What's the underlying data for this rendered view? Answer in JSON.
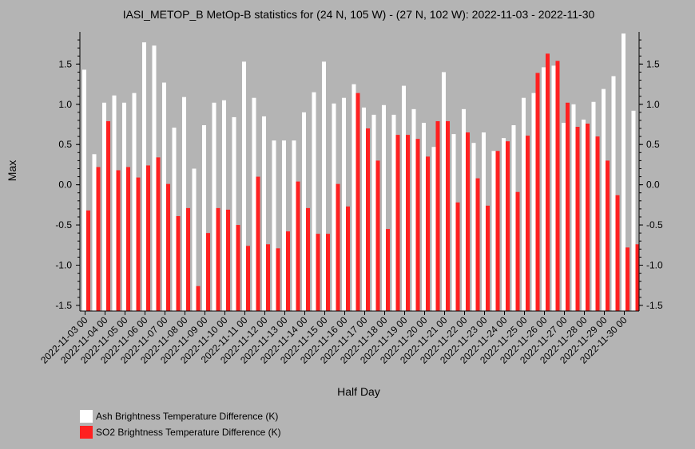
{
  "chart_data": {
    "type": "bar",
    "title": "IASI_METOP_B MetOp-B statistics for (24 N, 105 W) - (27 N, 102 W): 2022-11-03 - 2022-11-30",
    "xlabel": "Half Day",
    "ylabel": "Max",
    "ylim": [
      -1.57,
      1.9
    ],
    "yticks": [
      "-1.5",
      "-1.0",
      "-0.5",
      "0.0",
      "0.5",
      "1.0",
      "1.5"
    ],
    "ytick_values": [
      -1.5,
      -1.0,
      -0.5,
      0.0,
      0.5,
      1.0,
      1.5
    ],
    "tick_labels": [
      "2022-11-03 00",
      "2022-11-04 00",
      "2022-11-05 00",
      "2022-11-06 00",
      "2022-11-07 00",
      "2022-11-08 00",
      "2022-11-09 00",
      "2022-11-10 00",
      "2022-11-11 00",
      "2022-11-12 00",
      "2022-11-13 00",
      "2022-11-14 00",
      "2022-11-15 00",
      "2022-11-16 00",
      "2022-11-17 00",
      "2022-11-18 00",
      "2022-11-19 00",
      "2022-11-20 00",
      "2022-11-21 00",
      "2022-11-22 00",
      "2022-11-23 00",
      "2022-11-24 00",
      "2022-11-25 00",
      "2022-11-26 00",
      "2022-11-27 00",
      "2022-11-28 00",
      "2022-11-29 00",
      "2022-11-30 00"
    ],
    "grid": false,
    "legend_position": "bottom-left",
    "series": [
      {
        "name": "Ash Brightness Temperature Difference (K)",
        "color": "#ffffff",
        "values": [
          1.43,
          0.38,
          1.02,
          1.11,
          1.02,
          1.14,
          1.77,
          1.73,
          1.27,
          0.71,
          1.09,
          0.2,
          0.74,
          1.02,
          1.05,
          0.84,
          1.53,
          1.08,
          0.85,
          0.55,
          0.55,
          0.55,
          0.9,
          1.15,
          1.53,
          1.01,
          1.08,
          1.25,
          0.96,
          0.87,
          0.99,
          0.87,
          1.23,
          0.94,
          0.77,
          0.47,
          1.4,
          0.63,
          0.94,
          0.52,
          0.65,
          0.42,
          0.58,
          0.74,
          1.08,
          1.14,
          1.46,
          1.48,
          0.77,
          1.0,
          0.81,
          1.03,
          1.19,
          1.35,
          1.88,
          0.92
        ]
      },
      {
        "name": "SO2 Brightness Temperature Difference (K)",
        "color": "#ff2020",
        "values": [
          -0.32,
          0.22,
          0.79,
          0.18,
          0.22,
          0.09,
          0.24,
          0.34,
          0.01,
          -0.39,
          -0.29,
          -1.26,
          -0.6,
          -0.29,
          -0.31,
          -0.5,
          -0.76,
          0.1,
          -0.74,
          -0.79,
          -0.58,
          0.04,
          -0.29,
          -0.61,
          -0.61,
          0.01,
          -0.27,
          1.14,
          0.7,
          0.3,
          -0.55,
          0.62,
          0.62,
          0.57,
          0.35,
          0.79,
          0.79,
          -0.22,
          0.65,
          0.08,
          -0.26,
          0.42,
          0.54,
          -0.09,
          0.61,
          1.39,
          1.63,
          1.54,
          1.02,
          0.72,
          0.76,
          0.6,
          0.3,
          -0.13,
          -0.78,
          -0.74
        ]
      }
    ]
  }
}
